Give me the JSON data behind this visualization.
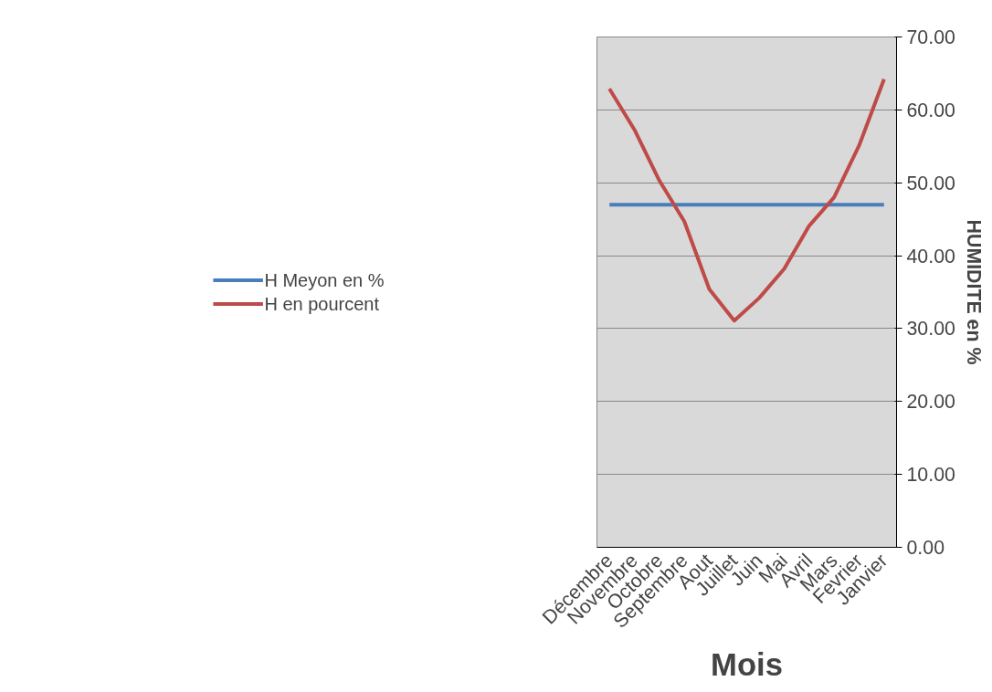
{
  "chart_data": {
    "type": "line",
    "xlabel": "Mois",
    "ylabel": "HUMIDITE en %",
    "categories": [
      "Décembre",
      "Novembre",
      "Octobre",
      "Septembre",
      "Aout",
      "Juillet",
      "Juin",
      "Mai",
      "Avril",
      "Mars",
      "Fevrier",
      "Janvier"
    ],
    "series": [
      {
        "name": "H Meyon en %",
        "color": "#4a7ebb",
        "values": [
          47.0,
          47.0,
          47.0,
          47.0,
          47.0,
          47.0,
          47.0,
          47.0,
          47.0,
          47.0,
          47.0,
          47.0
        ]
      },
      {
        "name": "H en pourcent",
        "color": "#be4b48",
        "values": [
          62.9,
          57.3,
          50.3,
          44.7,
          35.4,
          31.1,
          34.2,
          38.2,
          44.1,
          48.0,
          55.1,
          64.2
        ]
      }
    ],
    "ylim": [
      0,
      70
    ],
    "yticks": [
      {
        "value": 0,
        "label": "0.00"
      },
      {
        "value": 10,
        "label": "10.00"
      },
      {
        "value": 20,
        "label": "20.00"
      },
      {
        "value": 30,
        "label": "30.00"
      },
      {
        "value": 40,
        "label": "40.00"
      },
      {
        "value": 50,
        "label": "50.00"
      },
      {
        "value": 60,
        "label": "60.00"
      },
      {
        "value": 70,
        "label": "70.00"
      }
    ],
    "grid": "y",
    "legend": "left",
    "marker": "none",
    "line_style": "solid"
  }
}
